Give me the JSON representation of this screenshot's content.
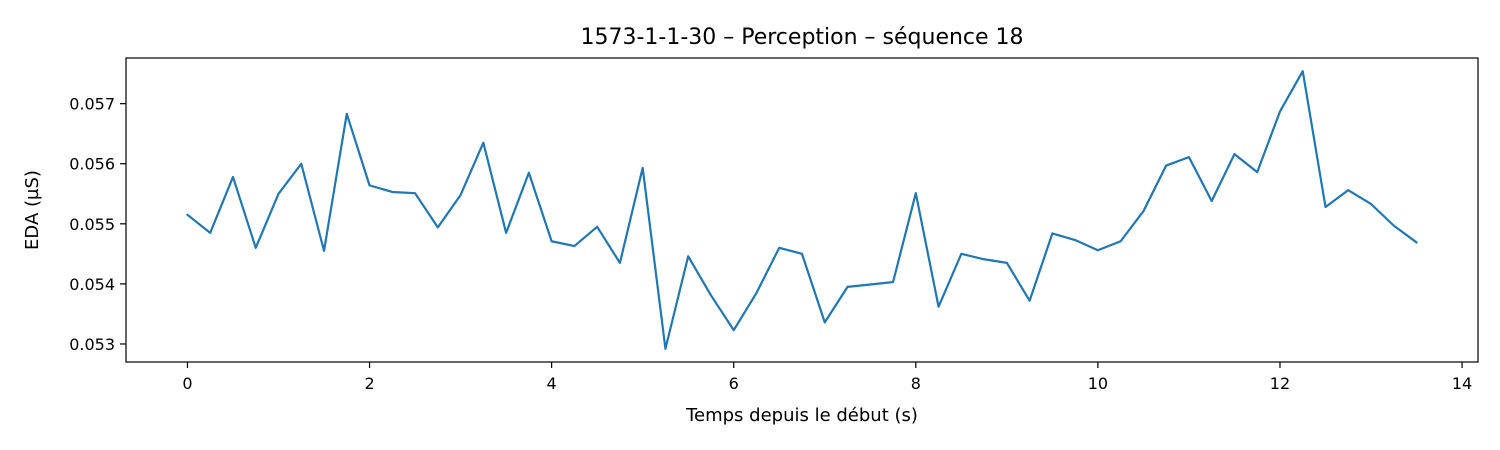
{
  "chart_data": {
    "type": "line",
    "title": "1573-1-1-30 – Perception – séquence 18",
    "xlabel": "Temps depuis le début (s)",
    "ylabel": "EDA (µS)",
    "xlim": [
      -0.675,
      14.175
    ],
    "ylim": [
      0.0527,
      0.05776
    ],
    "xticks": [
      0,
      2,
      4,
      6,
      8,
      10,
      12,
      14
    ],
    "xtick_labels": [
      "0",
      "2",
      "4",
      "6",
      "8",
      "10",
      "12",
      "14"
    ],
    "yticks": [
      0.053,
      0.054,
      0.055,
      0.056,
      0.057
    ],
    "ytick_labels": [
      "0.053",
      "0.054",
      "0.055",
      "0.056",
      "0.057"
    ],
    "grid": false,
    "series": [
      {
        "color": "#1f77b4",
        "x": [
          0,
          0.25,
          0.5,
          0.75,
          1,
          1.25,
          1.5,
          1.75,
          2,
          2.25,
          2.5,
          2.75,
          3,
          3.25,
          3.5,
          3.75,
          4,
          4.25,
          4.5,
          4.75,
          5,
          5.25,
          5.5,
          5.75,
          6,
          6.25,
          6.5,
          6.75,
          7,
          7.25,
          7.5,
          7.75,
          8,
          8.25,
          8.5,
          8.75,
          9,
          9.25,
          9.5,
          9.75,
          10,
          10.25,
          10.5,
          10.75,
          11,
          11.25,
          11.5,
          11.75,
          12,
          12.25,
          12.5,
          12.75,
          13,
          13.25,
          13.5
        ],
        "y": [
          0.05515,
          0.05485,
          0.05578,
          0.0546,
          0.0555,
          0.056,
          0.05455,
          0.05683,
          0.05564,
          0.05553,
          0.05551,
          0.05494,
          0.05548,
          0.05635,
          0.05485,
          0.05585,
          0.05471,
          0.05463,
          0.05495,
          0.05435,
          0.05593,
          0.05292,
          0.05446,
          0.05381,
          0.05323,
          0.05385,
          0.0546,
          0.0545,
          0.05336,
          0.05395,
          0.05399,
          0.05403,
          0.05551,
          0.05362,
          0.0545,
          0.05441,
          0.05435,
          0.05372,
          0.05484,
          0.05473,
          0.05456,
          0.05471,
          0.05521,
          0.05597,
          0.05611,
          0.05538,
          0.05616,
          0.05586,
          0.05687,
          0.05754,
          0.05528,
          0.05556,
          0.05533,
          0.05497,
          0.05469
        ]
      }
    ]
  }
}
